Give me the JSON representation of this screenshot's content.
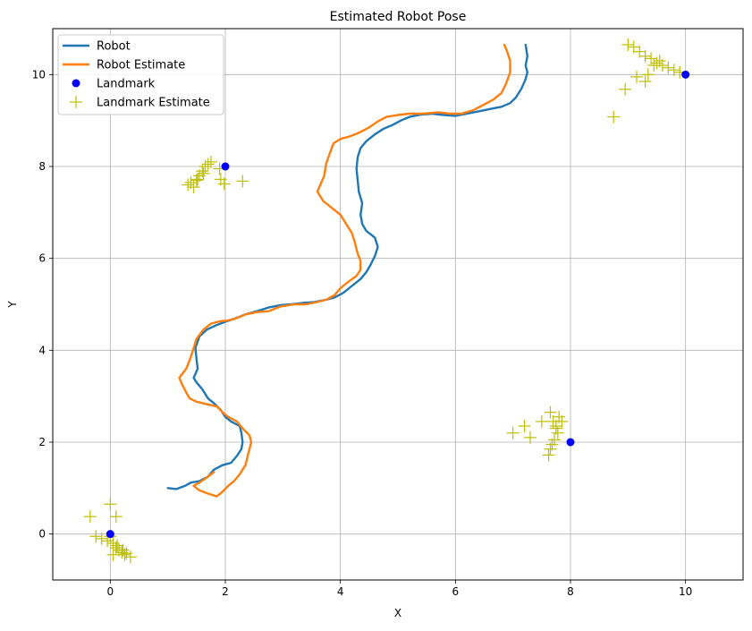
{
  "chart_data": {
    "type": "line",
    "title": "Estimated Robot Pose",
    "xlabel": "X",
    "ylabel": "Y",
    "xlim": [
      -1,
      11
    ],
    "ylim": [
      -1,
      11
    ],
    "xticks": [
      0,
      2,
      4,
      6,
      8,
      10
    ],
    "yticks": [
      0,
      2,
      4,
      6,
      8,
      10
    ],
    "grid": true,
    "legend_position": "top-left",
    "series": [
      {
        "name": "Robot",
        "kind": "line",
        "color": "#1f77b4",
        "points": [
          [
            1.0,
            1.0
          ],
          [
            1.15,
            0.98
          ],
          [
            1.3,
            1.05
          ],
          [
            1.4,
            1.12
          ],
          [
            1.55,
            1.15
          ],
          [
            1.7,
            1.25
          ],
          [
            1.8,
            1.4
          ],
          [
            1.95,
            1.5
          ],
          [
            2.1,
            1.55
          ],
          [
            2.2,
            1.7
          ],
          [
            2.28,
            1.85
          ],
          [
            2.3,
            2.0
          ],
          [
            2.28,
            2.2
          ],
          [
            2.25,
            2.35
          ],
          [
            2.1,
            2.45
          ],
          [
            2.0,
            2.55
          ],
          [
            1.92,
            2.7
          ],
          [
            1.8,
            2.85
          ],
          [
            1.7,
            2.95
          ],
          [
            1.6,
            3.15
          ],
          [
            1.5,
            3.3
          ],
          [
            1.45,
            3.4
          ],
          [
            1.52,
            3.6
          ],
          [
            1.5,
            3.8
          ],
          [
            1.48,
            4.05
          ],
          [
            1.55,
            4.3
          ],
          [
            1.68,
            4.45
          ],
          [
            1.85,
            4.55
          ],
          [
            2.0,
            4.62
          ],
          [
            2.15,
            4.68
          ],
          [
            2.35,
            4.78
          ],
          [
            2.55,
            4.85
          ],
          [
            2.75,
            4.93
          ],
          [
            2.95,
            4.98
          ],
          [
            3.15,
            5.0
          ],
          [
            3.35,
            5.03
          ],
          [
            3.55,
            5.05
          ],
          [
            3.75,
            5.1
          ],
          [
            3.9,
            5.15
          ],
          [
            4.05,
            5.25
          ],
          [
            4.2,
            5.4
          ],
          [
            4.35,
            5.55
          ],
          [
            4.45,
            5.7
          ],
          [
            4.52,
            5.85
          ],
          [
            4.6,
            6.05
          ],
          [
            4.65,
            6.25
          ],
          [
            4.6,
            6.45
          ],
          [
            4.45,
            6.6
          ],
          [
            4.38,
            6.75
          ],
          [
            4.35,
            6.95
          ],
          [
            4.38,
            7.2
          ],
          [
            4.32,
            7.45
          ],
          [
            4.3,
            7.7
          ],
          [
            4.28,
            7.95
          ],
          [
            4.3,
            8.2
          ],
          [
            4.35,
            8.4
          ],
          [
            4.45,
            8.55
          ],
          [
            4.6,
            8.7
          ],
          [
            4.75,
            8.82
          ],
          [
            4.9,
            8.9
          ],
          [
            5.05,
            9.0
          ],
          [
            5.2,
            9.08
          ],
          [
            5.4,
            9.13
          ],
          [
            5.6,
            9.15
          ],
          [
            5.8,
            9.12
          ],
          [
            6.0,
            9.1
          ],
          [
            6.2,
            9.15
          ],
          [
            6.4,
            9.2
          ],
          [
            6.6,
            9.25
          ],
          [
            6.8,
            9.3
          ],
          [
            6.95,
            9.38
          ],
          [
            7.05,
            9.5
          ],
          [
            7.15,
            9.7
          ],
          [
            7.22,
            9.9
          ],
          [
            7.25,
            10.05
          ],
          [
            7.22,
            10.2
          ],
          [
            7.25,
            10.4
          ],
          [
            7.22,
            10.65
          ]
        ]
      },
      {
        "name": "Robot Estimate",
        "kind": "line",
        "color": "#ff7f0e",
        "points": [
          [
            1.8,
            1.35
          ],
          [
            1.7,
            1.25
          ],
          [
            1.55,
            1.12
          ],
          [
            1.45,
            1.05
          ],
          [
            1.55,
            0.95
          ],
          [
            1.7,
            0.88
          ],
          [
            1.85,
            0.82
          ],
          [
            1.95,
            0.92
          ],
          [
            2.05,
            1.05
          ],
          [
            2.15,
            1.15
          ],
          [
            2.25,
            1.3
          ],
          [
            2.35,
            1.5
          ],
          [
            2.4,
            1.75
          ],
          [
            2.45,
            2.0
          ],
          [
            2.42,
            2.15
          ],
          [
            2.3,
            2.3
          ],
          [
            2.2,
            2.45
          ],
          [
            2.05,
            2.55
          ],
          [
            1.95,
            2.65
          ],
          [
            1.85,
            2.78
          ],
          [
            1.7,
            2.82
          ],
          [
            1.5,
            2.88
          ],
          [
            1.38,
            2.95
          ],
          [
            1.32,
            3.08
          ],
          [
            1.25,
            3.25
          ],
          [
            1.2,
            3.4
          ],
          [
            1.32,
            3.6
          ],
          [
            1.4,
            3.85
          ],
          [
            1.45,
            4.05
          ],
          [
            1.5,
            4.25
          ],
          [
            1.62,
            4.45
          ],
          [
            1.75,
            4.58
          ],
          [
            1.9,
            4.63
          ],
          [
            2.05,
            4.65
          ],
          [
            2.2,
            4.7
          ],
          [
            2.35,
            4.78
          ],
          [
            2.55,
            4.83
          ],
          [
            2.75,
            4.85
          ],
          [
            2.95,
            4.95
          ],
          [
            3.2,
            5.0
          ],
          [
            3.4,
            5.0
          ],
          [
            3.6,
            5.05
          ],
          [
            3.75,
            5.1
          ],
          [
            3.9,
            5.2
          ],
          [
            4.0,
            5.35
          ],
          [
            4.15,
            5.5
          ],
          [
            4.28,
            5.62
          ],
          [
            4.35,
            5.75
          ],
          [
            4.35,
            5.95
          ],
          [
            4.3,
            6.1
          ],
          [
            4.25,
            6.35
          ],
          [
            4.2,
            6.55
          ],
          [
            4.1,
            6.75
          ],
          [
            4.0,
            6.95
          ],
          [
            3.85,
            7.1
          ],
          [
            3.7,
            7.25
          ],
          [
            3.6,
            7.45
          ],
          [
            3.65,
            7.6
          ],
          [
            3.72,
            7.8
          ],
          [
            3.75,
            8.05
          ],
          [
            3.82,
            8.3
          ],
          [
            3.88,
            8.5
          ],
          [
            4.0,
            8.6
          ],
          [
            4.15,
            8.65
          ],
          [
            4.3,
            8.72
          ],
          [
            4.5,
            8.85
          ],
          [
            4.65,
            8.98
          ],
          [
            4.8,
            9.08
          ],
          [
            5.0,
            9.12
          ],
          [
            5.2,
            9.15
          ],
          [
            5.45,
            9.15
          ],
          [
            5.7,
            9.18
          ],
          [
            5.9,
            9.15
          ],
          [
            6.1,
            9.15
          ],
          [
            6.3,
            9.22
          ],
          [
            6.5,
            9.35
          ],
          [
            6.65,
            9.45
          ],
          [
            6.8,
            9.6
          ],
          [
            6.88,
            9.8
          ],
          [
            6.95,
            10.05
          ],
          [
            6.95,
            10.3
          ],
          [
            6.9,
            10.5
          ],
          [
            6.85,
            10.65
          ]
        ]
      },
      {
        "name": "Landmark",
        "kind": "marker",
        "marker": "circle",
        "color": "#0000ff",
        "points": [
          [
            0,
            0
          ],
          [
            2,
            8
          ],
          [
            8,
            2
          ],
          [
            10,
            10
          ]
        ]
      },
      {
        "name": "Landmark Estimate",
        "kind": "marker",
        "marker": "plus",
        "color": "#bfbf00",
        "points": [
          [
            -0.35,
            0.38
          ],
          [
            0.0,
            0.65
          ],
          [
            0.1,
            0.38
          ],
          [
            -0.25,
            -0.05
          ],
          [
            -0.15,
            -0.1
          ],
          [
            -0.05,
            -0.15
          ],
          [
            0.05,
            -0.2
          ],
          [
            0.1,
            -0.3
          ],
          [
            0.15,
            -0.35
          ],
          [
            0.2,
            -0.4
          ],
          [
            0.25,
            -0.45
          ],
          [
            0.35,
            -0.5
          ],
          [
            0.05,
            -0.45
          ],
          [
            0.0,
            -0.05
          ],
          [
            0.12,
            -0.25
          ],
          [
            0.22,
            -0.35
          ],
          [
            0.28,
            -0.42
          ],
          [
            1.45,
            7.55
          ],
          [
            1.5,
            7.7
          ],
          [
            1.55,
            7.8
          ],
          [
            1.6,
            7.9
          ],
          [
            1.65,
            8.0
          ],
          [
            1.7,
            8.05
          ],
          [
            1.75,
            8.1
          ],
          [
            1.35,
            7.6
          ],
          [
            1.4,
            7.65
          ],
          [
            1.52,
            7.72
          ],
          [
            1.62,
            7.85
          ],
          [
            1.92,
            7.72
          ],
          [
            1.98,
            7.62
          ],
          [
            2.3,
            7.68
          ],
          [
            1.9,
            7.95
          ],
          [
            7.0,
            2.2
          ],
          [
            7.2,
            2.35
          ],
          [
            7.3,
            2.1
          ],
          [
            7.5,
            2.45
          ],
          [
            7.65,
            2.65
          ],
          [
            7.7,
            2.45
          ],
          [
            7.75,
            2.3
          ],
          [
            7.8,
            2.55
          ],
          [
            7.85,
            2.45
          ],
          [
            7.78,
            2.2
          ],
          [
            7.72,
            2.05
          ],
          [
            7.68,
            1.95
          ],
          [
            7.65,
            1.85
          ],
          [
            7.62,
            1.72
          ],
          [
            7.75,
            2.35
          ],
          [
            8.75,
            9.08
          ],
          [
            8.95,
            9.68
          ],
          [
            9.15,
            9.95
          ],
          [
            9.3,
            9.85
          ],
          [
            9.0,
            10.65
          ],
          [
            9.1,
            10.6
          ],
          [
            9.2,
            10.5
          ],
          [
            9.3,
            10.4
          ],
          [
            9.4,
            10.35
          ],
          [
            9.5,
            10.25
          ],
          [
            9.6,
            10.2
          ],
          [
            9.7,
            10.15
          ],
          [
            9.8,
            10.1
          ],
          [
            9.9,
            10.05
          ],
          [
            9.35,
            10.0
          ],
          [
            9.55,
            10.3
          ],
          [
            9.45,
            10.2
          ]
        ]
      }
    ]
  }
}
